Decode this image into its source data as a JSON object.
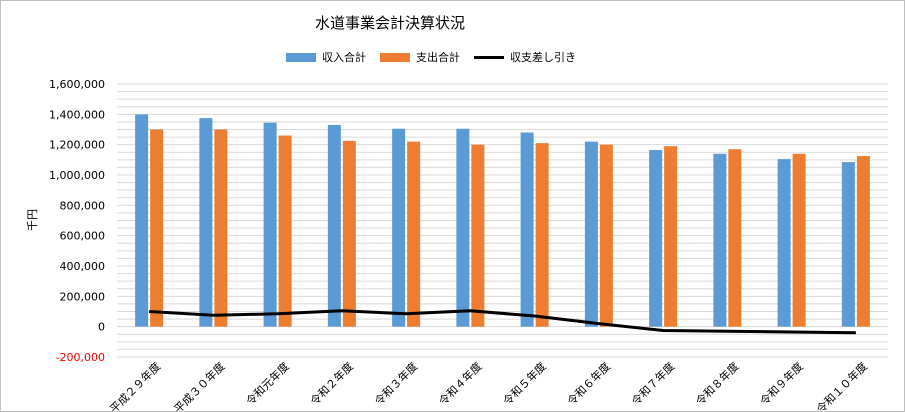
{
  "chart_data": {
    "type": "bar",
    "title": "水道事業会計決算状況",
    "ylabel": "千円",
    "xlabel": "",
    "ylim": [
      -200000,
      1600000
    ],
    "y_ticks": [
      {
        "value": -200000,
        "label": "-200,000",
        "color": "#ff0000"
      },
      {
        "value": 0,
        "label": "0",
        "color": "#000000"
      },
      {
        "value": 200000,
        "label": "200,000",
        "color": "#000000"
      },
      {
        "value": 400000,
        "label": "400,000",
        "color": "#000000"
      },
      {
        "value": 600000,
        "label": "600,000",
        "color": "#000000"
      },
      {
        "value": 800000,
        "label": "800,000",
        "color": "#000000"
      },
      {
        "value": 1000000,
        "label": "1,000,000",
        "color": "#000000"
      },
      {
        "value": 1200000,
        "label": "1,200,000",
        "color": "#000000"
      },
      {
        "value": 1400000,
        "label": "1,400,000",
        "color": "#000000"
      },
      {
        "value": 1600000,
        "label": "1,600,000",
        "color": "#000000"
      }
    ],
    "categories": [
      "平成２９年度",
      "平成３０年度",
      "令和元年度",
      "令和２年度",
      "令和３年度",
      "令和４年度",
      "令和５年度",
      "令和６年度",
      "令和７年度",
      "令和８年度",
      "令和９年度",
      "令和１０年度"
    ],
    "series": [
      {
        "name": "収入合計",
        "type": "bar",
        "color": "#5b9bd5",
        "values": [
          1400000,
          1375000,
          1345000,
          1330000,
          1305000,
          1305000,
          1280000,
          1220000,
          1165000,
          1140000,
          1105000,
          1085000
        ]
      },
      {
        "name": "支出合計",
        "type": "bar",
        "color": "#ed7d31",
        "values": [
          1300000,
          1300000,
          1260000,
          1225000,
          1220000,
          1200000,
          1210000,
          1200000,
          1190000,
          1170000,
          1140000,
          1125000
        ]
      },
      {
        "name": "収支差し引き",
        "type": "line",
        "color": "#000000",
        "values": [
          100000,
          75000,
          85000,
          105000,
          85000,
          105000,
          70000,
          20000,
          -25000,
          -30000,
          -35000,
          -40000
        ]
      }
    ],
    "grid": true,
    "legend_position": "top"
  }
}
